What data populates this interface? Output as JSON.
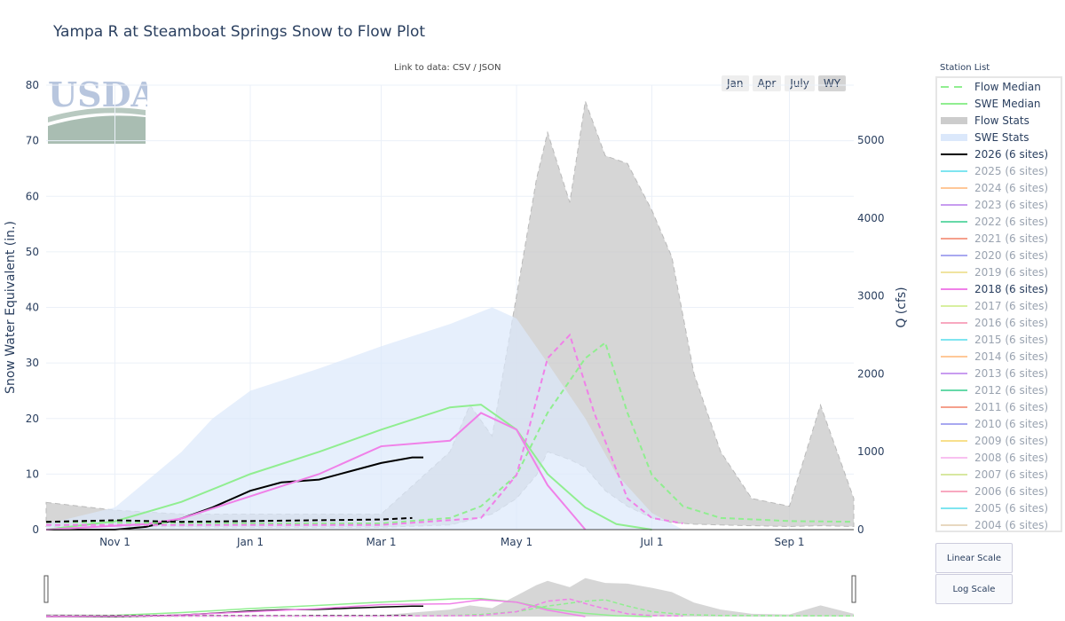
{
  "title": "Yampa R at Steamboat Springs Snow to Flow Plot",
  "link_text": "Link to data: CSV / JSON",
  "range_buttons": [
    {
      "label": "Jan",
      "active": false
    },
    {
      "label": "Apr",
      "active": false
    },
    {
      "label": "July",
      "active": false
    },
    {
      "label": "WY",
      "active": true
    }
  ],
  "logo_text": "USDA",
  "legend": {
    "title": "Station List",
    "items": [
      {
        "label": "Flow Median",
        "color": "#90ee90",
        "style": "dash",
        "active": true
      },
      {
        "label": "SWE Median",
        "color": "#90ee90",
        "style": "line",
        "active": true
      },
      {
        "label": "Flow Stats",
        "color": "#cccccc",
        "style": "band",
        "active": true
      },
      {
        "label": "SWE Stats",
        "color": "#dbe8fb",
        "style": "band",
        "active": true
      },
      {
        "label": "2026 (6 sites)",
        "color": "#000000",
        "style": "line",
        "active": true
      },
      {
        "label": "2025 (6 sites)",
        "color": "#7fe5f0",
        "style": "line",
        "active": false
      },
      {
        "label": "2024 (6 sites)",
        "color": "#ffc898",
        "style": "line",
        "active": false
      },
      {
        "label": "2023 (6 sites)",
        "color": "#c89cf0",
        "style": "line",
        "active": false
      },
      {
        "label": "2022 (6 sites)",
        "color": "#66d9a8",
        "style": "line",
        "active": false
      },
      {
        "label": "2021 (6 sites)",
        "color": "#f5a08c",
        "style": "line",
        "active": false
      },
      {
        "label": "2020 (6 sites)",
        "color": "#a8a8f0",
        "style": "line",
        "active": false
      },
      {
        "label": "2019 (6 sites)",
        "color": "#f0e4a0",
        "style": "line",
        "active": false
      },
      {
        "label": "2018 (6 sites)",
        "color": "#f080e8",
        "style": "line",
        "active": true
      },
      {
        "label": "2017 (6 sites)",
        "color": "#d8f0a0",
        "style": "line",
        "active": false
      },
      {
        "label": "2016 (6 sites)",
        "color": "#f8a8c0",
        "style": "line",
        "active": false
      },
      {
        "label": "2015 (6 sites)",
        "color": "#7fe5f0",
        "style": "line",
        "active": false
      },
      {
        "label": "2014 (6 sites)",
        "color": "#ffc898",
        "style": "line",
        "active": false
      },
      {
        "label": "2013 (6 sites)",
        "color": "#c89cf0",
        "style": "line",
        "active": false
      },
      {
        "label": "2012 (6 sites)",
        "color": "#66d9a8",
        "style": "line",
        "active": false
      },
      {
        "label": "2011 (6 sites)",
        "color": "#f5a08c",
        "style": "line",
        "active": false
      },
      {
        "label": "2010 (6 sites)",
        "color": "#a8a8f0",
        "style": "line",
        "active": false
      },
      {
        "label": "2009 (6 sites)",
        "color": "#f8e08c",
        "style": "line",
        "active": false
      },
      {
        "label": "2008 (6 sites)",
        "color": "#f8c0f0",
        "style": "line",
        "active": false
      },
      {
        "label": "2007 (6 sites)",
        "color": "#d8e8a0",
        "style": "line",
        "active": false
      },
      {
        "label": "2006 (6 sites)",
        "color": "#f8a8c0",
        "style": "line",
        "active": false
      },
      {
        "label": "2005 (6 sites)",
        "color": "#7fe5f0",
        "style": "line",
        "active": false
      },
      {
        "label": "2004 (6 sites)",
        "color": "#e8d8c0",
        "style": "line",
        "active": false
      }
    ]
  },
  "scale_buttons": {
    "linear": "Linear Scale",
    "log": "Log Scale"
  },
  "chart_data": {
    "type": "line",
    "title": "Yampa R at Steamboat Springs Snow to Flow Plot",
    "ylabel": "Snow Water Equivalent (in.)",
    "y2label": "Q (cfs)",
    "ylim": [
      0,
      80
    ],
    "y2lim": [
      0,
      5700
    ],
    "yticks": [
      0,
      10,
      20,
      30,
      40,
      50,
      60,
      70,
      80
    ],
    "y2ticks": [
      0,
      1000,
      2000,
      3000,
      4000,
      5000
    ],
    "xticks": [
      {
        "date": "11-01",
        "label": "Nov 1"
      },
      {
        "date": "01-01",
        "label": "Jan 1"
      },
      {
        "date": "03-01",
        "label": "Mar 1"
      },
      {
        "date": "05-01",
        "label": "May 1"
      },
      {
        "date": "07-01",
        "label": "Jul 1"
      },
      {
        "date": "09-01",
        "label": "Sep 1"
      }
    ],
    "xrange": [
      "10-01",
      "09-30"
    ],
    "grid": true,
    "legend_placement": "right",
    "swe_stats": {
      "x": [
        "10-01",
        "11-01",
        "12-01",
        "12-15",
        "01-01",
        "02-01",
        "03-01",
        "04-01",
        "04-20",
        "05-01",
        "05-15",
        "06-01",
        "06-15",
        "07-01",
        "07-15"
      ],
      "max": [
        1,
        4,
        14,
        20,
        25,
        29,
        33,
        37,
        40,
        38,
        30,
        20,
        10,
        3,
        0
      ],
      "min": [
        0,
        0,
        0,
        0,
        0,
        0,
        0,
        0,
        0,
        0,
        0,
        0,
        0,
        0,
        0
      ],
      "color": "#dbe8fb"
    },
    "flow_stats": {
      "x": [
        "10-01",
        "11-01",
        "12-01",
        "01-01",
        "03-01",
        "04-01",
        "04-10",
        "04-20",
        "05-01",
        "05-10",
        "05-15",
        "05-25",
        "06-01",
        "06-10",
        "06-20",
        "07-01",
        "07-10",
        "07-20",
        "08-01",
        "08-15",
        "09-01",
        "09-15",
        "09-30"
      ],
      "max": [
        350,
        250,
        200,
        200,
        200,
        1000,
        1600,
        1200,
        3000,
        4500,
        5100,
        4200,
        5500,
        4800,
        4700,
        4100,
        3500,
        2000,
        1000,
        400,
        300,
        1600,
        400
      ],
      "min": [
        40,
        40,
        35,
        30,
        30,
        60,
        120,
        200,
        400,
        700,
        1000,
        900,
        800,
        500,
        300,
        150,
        90,
        70,
        60,
        50,
        40,
        50,
        40
      ],
      "color": "#cccccc"
    },
    "series": [
      {
        "name": "SWE Median",
        "axis": "y",
        "color": "#90ee90",
        "dash": false,
        "x": [
          "10-01",
          "11-01",
          "12-01",
          "01-01",
          "02-01",
          "03-01",
          "04-01",
          "04-15",
          "05-01",
          "05-15",
          "06-01",
          "06-15",
          "07-01"
        ],
        "y": [
          0,
          1.5,
          5,
          10,
          14,
          18,
          22,
          22.5,
          18,
          10,
          4,
          1,
          0
        ]
      },
      {
        "name": "2026 (6 sites)",
        "axis": "y",
        "color": "#000000",
        "dash": false,
        "x": [
          "10-01",
          "11-01",
          "11-15",
          "12-01",
          "12-15",
          "01-01",
          "01-15",
          "02-01",
          "02-15",
          "03-01",
          "03-15",
          "03-20"
        ],
        "y": [
          0,
          0,
          0.5,
          2,
          4,
          7,
          8.5,
          9,
          10.5,
          12,
          13,
          13
        ]
      },
      {
        "name": "2018 (6 sites)",
        "axis": "y",
        "color": "#f080e8",
        "dash": false,
        "x": [
          "10-01",
          "11-15",
          "12-01",
          "01-01",
          "02-01",
          "03-01",
          "04-01",
          "04-15",
          "05-01",
          "05-15",
          "06-01"
        ],
        "y": [
          0,
          1,
          2,
          6,
          10,
          15,
          16,
          21,
          18,
          8,
          0
        ]
      },
      {
        "name": "Flow Median",
        "axis": "y2",
        "color": "#90ee90",
        "dash": true,
        "x": [
          "10-01",
          "11-01",
          "01-01",
          "03-01",
          "04-01",
          "04-15",
          "05-01",
          "05-15",
          "06-01",
          "06-10",
          "06-20",
          "07-01",
          "07-15",
          "08-01",
          "09-01",
          "09-30"
        ],
        "y": [
          100,
          90,
          80,
          80,
          150,
          300,
          700,
          1500,
          2200,
          2400,
          1500,
          700,
          300,
          150,
          110,
          100
        ]
      },
      {
        "name": "2026 (6 sites) flow",
        "axis": "y2",
        "color": "#000000",
        "dash": true,
        "x": [
          "10-01",
          "11-01",
          "12-01",
          "03-01",
          "03-15"
        ],
        "y": [
          100,
          120,
          100,
          130,
          150
        ]
      },
      {
        "name": "2018 (6 sites) flow",
        "axis": "y2",
        "color": "#f080e8",
        "dash": true,
        "x": [
          "10-01",
          "03-01",
          "04-15",
          "05-01",
          "05-15",
          "05-25",
          "06-05",
          "06-20",
          "07-01",
          "07-15"
        ],
        "y": [
          60,
          60,
          150,
          700,
          2200,
          2500,
          1500,
          400,
          150,
          80
        ]
      }
    ]
  }
}
